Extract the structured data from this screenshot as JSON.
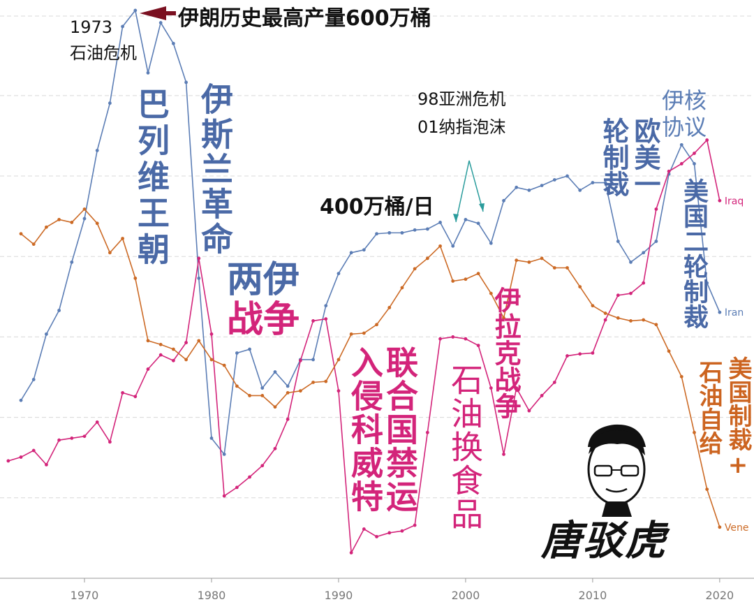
{
  "chart_data": {
    "type": "line",
    "xlim": [
      1963.35,
      2022.7
    ],
    "xticks": [
      1970,
      1980,
      1990,
      2000,
      2010,
      2020
    ],
    "ylim": [
      0,
      611
    ],
    "gridlines": [
      85,
      170,
      255,
      340,
      425,
      510,
      594
    ],
    "series": [
      {
        "name": "Iran",
        "color": "#5b7db5",
        "x": [
          1965,
          1966,
          1967,
          1968,
          1969,
          1970,
          1971,
          1972,
          1973,
          1974,
          1975,
          1976,
          1977,
          1978,
          1979,
          1980,
          1981,
          1982,
          1983,
          1984,
          1985,
          1986,
          1987,
          1988,
          1989,
          1990,
          1991,
          1992,
          1993,
          1994,
          1995,
          1996,
          1997,
          1998,
          1999,
          2000,
          2001,
          2002,
          2003,
          2004,
          2005,
          2006,
          2007,
          2008,
          2009,
          2010,
          2011,
          2012,
          2013,
          2014,
          2015,
          2016,
          2017,
          2018,
          2019,
          2020
        ],
        "values": [
          188,
          210,
          258,
          283,
          334,
          380,
          452,
          502,
          583,
          600,
          534,
          587,
          565,
          524,
          317,
          148,
          131,
          238,
          242,
          201,
          218,
          203,
          231,
          231,
          288,
          322,
          344,
          347,
          364,
          365,
          365,
          368,
          369,
          376,
          351,
          379,
          375,
          354,
          399,
          413,
          410,
          415,
          421,
          425,
          410,
          418,
          418,
          356,
          334,
          344,
          356,
          427,
          458,
          438,
          312,
          281
        ]
      },
      {
        "name": "Iraq",
        "color": "#d3247a",
        "x": [
          1964,
          1965,
          1966,
          1967,
          1968,
          1969,
          1970,
          1971,
          1972,
          1973,
          1974,
          1975,
          1976,
          1977,
          1978,
          1979,
          1980,
          1981,
          1982,
          1983,
          1984,
          1985,
          1986,
          1987,
          1988,
          1989,
          1990,
          1991,
          1992,
          1993,
          1994,
          1995,
          1996,
          1997,
          1998,
          1999,
          2000,
          2001,
          2002,
          2003,
          2004,
          2005,
          2006,
          2007,
          2008,
          2009,
          2010,
          2011,
          2012,
          2013,
          2014,
          2015,
          2016,
          2017,
          2018,
          2019,
          2020
        ],
        "values": [
          124,
          128,
          135,
          120,
          146,
          148,
          150,
          165,
          144,
          196,
          192,
          221,
          236,
          230,
          249,
          338,
          258,
          87,
          96,
          107,
          119,
          137,
          168,
          230,
          272,
          274,
          198,
          27,
          52,
          44,
          48,
          50,
          56,
          154,
          253,
          255,
          253,
          246,
          201,
          131,
          201,
          177,
          193,
          207,
          235,
          237,
          238,
          273,
          299,
          301,
          312,
          390,
          430,
          438,
          449,
          463,
          399
        ]
      },
      {
        "name": "Vene",
        "color": "#cc6a25",
        "x": [
          1965,
          1966,
          1967,
          1968,
          1969,
          1970,
          1971,
          1972,
          1973,
          1974,
          1975,
          1976,
          1977,
          1978,
          1979,
          1980,
          1981,
          1982,
          1983,
          1984,
          1985,
          1986,
          1987,
          1988,
          1989,
          1990,
          1991,
          1992,
          1993,
          1994,
          1995,
          1996,
          1997,
          1998,
          1999,
          2000,
          2001,
          2002,
          2003,
          2004,
          2005,
          2006,
          2007,
          2008,
          2009,
          2010,
          2011,
          2012,
          2013,
          2014,
          2015,
          2016,
          2017,
          2018,
          2019,
          2020
        ],
        "values": [
          364,
          353,
          371,
          379,
          376,
          390,
          375,
          344,
          359,
          317,
          251,
          247,
          242,
          231,
          251,
          231,
          225,
          203,
          193,
          193,
          181,
          196,
          198,
          207,
          208,
          231,
          258,
          259,
          268,
          286,
          307,
          327,
          338,
          351,
          314,
          316,
          322,
          301,
          275,
          336,
          334,
          338,
          328,
          328,
          308,
          288,
          280,
          275,
          272,
          273,
          268,
          240,
          213,
          154,
          94,
          54
        ]
      }
    ],
    "annotations": {
      "peak": "伊朗历史最高产量600万桶",
      "crisis_year": "1973",
      "crisis": "石油危机",
      "pahlavi": "巴列维王朝",
      "revolution": "伊斯兰革命",
      "war_1": "两伊",
      "war_2": "战争",
      "level": "400万桶/日",
      "asia": "98亚洲危机",
      "nasdaq": "01纳指泡沫",
      "deal_1": "伊核",
      "deal_2": "协议",
      "sanction_a": "轮制裁",
      "sanction_b": "欧美一",
      "sanction_2": "美国二轮制裁",
      "kuwait": "入侵科威特",
      "embargo": "联合国禁运",
      "food": "石油换食品",
      "iraq_war": "伊拉克战争",
      "us_sanction": "美国制裁+",
      "self": "石油自给",
      "logo": "唐驳虎"
    }
  }
}
